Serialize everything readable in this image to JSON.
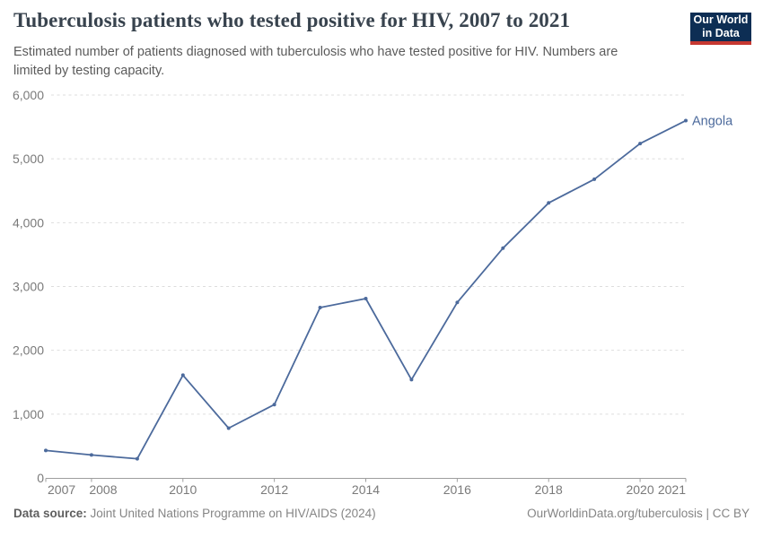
{
  "header": {
    "title": "Tuberculosis patients who tested positive for HIV, 2007 to 2021",
    "subtitle": "Estimated number of patients diagnosed with tuberculosis who have tested positive for HIV. Numbers are limited by testing capacity.",
    "logo": {
      "line1": "Our World",
      "line2": "in Data",
      "bg_color": "#0d2e54",
      "accent_color": "#c63831"
    }
  },
  "chart_data": {
    "type": "line",
    "title": "Tuberculosis patients who tested positive for HIV, 2007 to 2021",
    "x": [
      2007,
      2008,
      2009,
      2010,
      2011,
      2012,
      2013,
      2014,
      2015,
      2016,
      2017,
      2018,
      2019,
      2020,
      2021
    ],
    "series": [
      {
        "name": "Angola",
        "color": "#4c6a9c",
        "values": [
          430,
          360,
          300,
          1610,
          780,
          1150,
          2670,
          2810,
          1540,
          2750,
          3600,
          4310,
          4680,
          5240,
          5600
        ]
      }
    ],
    "xlim": [
      2007,
      2021
    ],
    "ylim": [
      0,
      6000
    ],
    "x_ticks": [
      2007,
      2008,
      2010,
      2012,
      2014,
      2016,
      2018,
      2020,
      2021
    ],
    "x_tick_labels": [
      "2007",
      "2008",
      "2010",
      "2012",
      "2014",
      "2016",
      "2018",
      "2020",
      "2021"
    ],
    "y_ticks": [
      0,
      1000,
      2000,
      3000,
      4000,
      5000,
      6000
    ],
    "y_tick_labels": [
      "0",
      "1,000",
      "2,000",
      "3,000",
      "4,000",
      "5,000",
      "6,000"
    ],
    "grid": "horizontal-dashed",
    "legend_position": "end-of-line-label",
    "end_label": "Angola",
    "xlabel": "",
    "ylabel": ""
  },
  "footer": {
    "data_source_label": "Data source:",
    "data_source_value": " Joint United Nations Programme on HIV/AIDS (2024)",
    "attribution": "OurWorldinData.org/tuberculosis | CC BY"
  },
  "colors": {
    "line": "#4c6a9c",
    "grid": "#dddddd",
    "axis": "#9e9e9e",
    "tick_text": "#7a7a7a",
    "title_text": "#38434e",
    "subtitle_text": "#5b5b5b"
  }
}
